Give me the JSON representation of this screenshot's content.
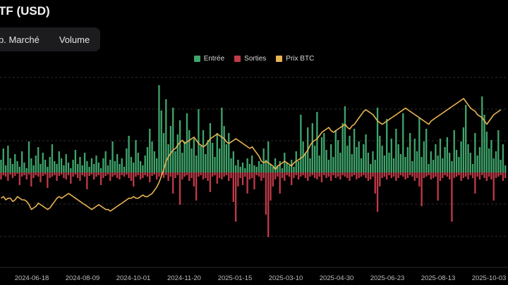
{
  "header": {
    "title": "TF (USD)"
  },
  "tabs": [
    {
      "label": "p. Marché"
    },
    {
      "label": "Volume"
    }
  ],
  "colors": {
    "inflow": "#3fa56b",
    "outflow": "#c03a48",
    "price": "#e8b453",
    "grid": "#3a3a3a"
  },
  "chart_data": {
    "type": "bar",
    "legend": [
      "Entrée",
      "Sorties",
      "Prix BTC"
    ],
    "legend_position": "top-center",
    "grid": true,
    "x_tick_labels": [
      "2024-06-18",
      "2024-08-09",
      "2024-10-01",
      "2024-11-20",
      "2025-01-15",
      "2025-03-10",
      "2025-04-30",
      "2025-06-23",
      "2025-08-13",
      "2025-10-03"
    ],
    "series": [
      {
        "name": "Entrée",
        "values": [
          18,
          34,
          10,
          38,
          20,
          12,
          26,
          16,
          8,
          30,
          14,
          6,
          44,
          20,
          10,
          24,
          36,
          12,
          28,
          18,
          8,
          22,
          40,
          16,
          12,
          30,
          20,
          10,
          26,
          14,
          6,
          18,
          32,
          12,
          22,
          10,
          28,
          16,
          8,
          20,
          12,
          24,
          14,
          6,
          20,
          30,
          10,
          18,
          44,
          16,
          26,
          12,
          20,
          8,
          34,
          52,
          22,
          14,
          46,
          28,
          16,
          10,
          24,
          36,
          62,
          44,
          30,
          20,
          124,
          88,
          56,
          104,
          40,
          66,
          92,
          30,
          54,
          74,
          28,
          44,
          84,
          60,
          34,
          48,
          24,
          90,
          38,
          60,
          26,
          46,
          70,
          42,
          22,
          56,
          34,
          92,
          66,
          40,
          56,
          20,
          30,
          10,
          18,
          8,
          14,
          6,
          20,
          12,
          24,
          10,
          8,
          16,
          12,
          34,
          18,
          44,
          12,
          8,
          20,
          10,
          16,
          6,
          28,
          14,
          10,
          18,
          8,
          30,
          16,
          82,
          44,
          28,
          64,
          20,
          70,
          38,
          86,
          24,
          50,
          56,
          32,
          18,
          40,
          22,
          60,
          46,
          28,
          70,
          94,
          38,
          52,
          26,
          62,
          36,
          44,
          20,
          40,
          54,
          28,
          12,
          30,
          18,
          92,
          52,
          38,
          24,
          76,
          28,
          48,
          20,
          62,
          40,
          26,
          84,
          22,
          36,
          56,
          16,
          48,
          30,
          78,
          22,
          44,
          62,
          12,
          30,
          18,
          40,
          24,
          48,
          20,
          36,
          50,
          28,
          16,
          60,
          32,
          22,
          44,
          64,
          96,
          40,
          28,
          12,
          56,
          24,
          36,
          108,
          82,
          58,
          34,
          46,
          20,
          30,
          60,
          18,
          40,
          10
        ]
      },
      {
        "name": "Sorties",
        "values": [
          -10,
          -4,
          -6,
          -12,
          -3,
          -8,
          -5,
          -2,
          -18,
          -6,
          -4,
          -10,
          -3,
          -20,
          -8,
          -4,
          -6,
          -14,
          -5,
          -3,
          -22,
          -8,
          -6,
          -4,
          -12,
          -5,
          -3,
          -8,
          -10,
          -4,
          -16,
          -6,
          -3,
          -8,
          -12,
          -4,
          -6,
          -24,
          -5,
          -3,
          -10,
          -6,
          -4,
          -18,
          -8,
          -5,
          -3,
          -12,
          -6,
          -4,
          -8,
          -10,
          -4,
          -6,
          -3,
          -8,
          -12,
          -20,
          -6,
          -4,
          -10,
          -8,
          -4,
          -6,
          -14,
          -5,
          -3,
          -10,
          -6,
          -4,
          -8,
          -4,
          -12,
          -6,
          -30,
          -8,
          -4,
          -46,
          -10,
          -6,
          -4,
          -12,
          -8,
          -20,
          -40,
          -6,
          -4,
          -10,
          -8,
          -12,
          -28,
          -6,
          -4,
          -16,
          -8,
          -10,
          -6,
          -4,
          -12,
          -8,
          -42,
          -70,
          -20,
          -8,
          -18,
          -6,
          -30,
          -10,
          -8,
          -24,
          -4,
          -6,
          -12,
          -8,
          -60,
          -92,
          -40,
          -20,
          -10,
          -6,
          -30,
          -8,
          -12,
          -4,
          -6,
          -18,
          -8,
          -4,
          -10,
          -6,
          -4,
          -8,
          -12,
          -6,
          -4,
          -8,
          -10,
          -6,
          -14,
          -4,
          -8,
          -6,
          -12,
          -4,
          -8,
          -6,
          -10,
          -4,
          -6,
          -8,
          -12,
          -6,
          -4,
          -10,
          -8,
          -6,
          -4,
          -8,
          -12,
          -10,
          -6,
          -30,
          -56,
          -20,
          -8,
          -6,
          -10,
          -4,
          -8,
          -6,
          -12,
          -8,
          -4,
          -6,
          -10,
          -8,
          -4,
          -6,
          -12,
          -8,
          -20,
          -48,
          -8,
          -6,
          -4,
          -10,
          -8,
          -6,
          -40,
          -12,
          -8,
          -4,
          -6,
          -10,
          -70,
          -8,
          -6,
          -4,
          -12,
          -8,
          -6,
          -10,
          -4,
          -8,
          -30,
          -6,
          -10,
          -4,
          -8,
          -12,
          -6,
          -10,
          -40,
          -8,
          -6,
          -4,
          -12,
          -8,
          -6,
          -10,
          -4,
          -8,
          -6,
          -12
        ]
      },
      {
        "name": "Prix BTC",
        "values": [
          62,
          63,
          61,
          62,
          62,
          60,
          61,
          63,
          62,
          61,
          61,
          60,
          58,
          55,
          56,
          57,
          59,
          58,
          57,
          56,
          55,
          56,
          58,
          60,
          62,
          63,
          62,
          63,
          64,
          65,
          64,
          63,
          62,
          61,
          60,
          59,
          58,
          57,
          56,
          55,
          56,
          57,
          58,
          57,
          56,
          55,
          55,
          54,
          55,
          56,
          57,
          58,
          59,
          60,
          61,
          62,
          62,
          63,
          62,
          62,
          63,
          64,
          63,
          63,
          64,
          65,
          67,
          69,
          72,
          76,
          80,
          85,
          88,
          90,
          92,
          93,
          95,
          97,
          98,
          96,
          97,
          98,
          99,
          100,
          98,
          96,
          95,
          94,
          95,
          97,
          99,
          100,
          101,
          102,
          101,
          100,
          99,
          97,
          96,
          97,
          98,
          99,
          98,
          97,
          96,
          95,
          94,
          93,
          94,
          92,
          90,
          88,
          85,
          84,
          85,
          84,
          83,
          82,
          80,
          82,
          83,
          84,
          85,
          84,
          83,
          82,
          84,
          85,
          86,
          87,
          88,
          90,
          92,
          95,
          97,
          98,
          99,
          101,
          103,
          104,
          105,
          106,
          104,
          103,
          104,
          105,
          106,
          107,
          108,
          106,
          105,
          107,
          108,
          110,
          112,
          114,
          116,
          117,
          116,
          115,
          114,
          112,
          110,
          109,
          108,
          109,
          110,
          111,
          112,
          113,
          114,
          115,
          116,
          117,
          118,
          117,
          116,
          115,
          114,
          113,
          112,
          111,
          110,
          109,
          108,
          110,
          111,
          112,
          113,
          114,
          115,
          116,
          117,
          118,
          119,
          120,
          121,
          122,
          123,
          124,
          122,
          120,
          118,
          117,
          116,
          114,
          113,
          112,
          110,
          108,
          110,
          112,
          114,
          115,
          116,
          117
        ]
      }
    ]
  }
}
